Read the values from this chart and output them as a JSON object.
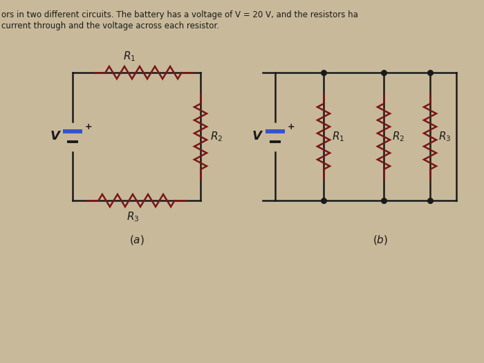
{
  "bg_color": "#c8b99a",
  "line_color": "#1a1a1a",
  "resistor_color": "#7B1515",
  "battery_color_pos": "#3355cc",
  "text_color": "#1a1a1a",
  "title_line1": "ors in two different circuits. The battery has a voltage of V = 20 V, and the resistors ha",
  "title_line2": "current through and the voltage across each resistor.",
  "lw": 1.8,
  "fig_width": 7.0,
  "fig_height": 5.25,
  "dpi": 100
}
